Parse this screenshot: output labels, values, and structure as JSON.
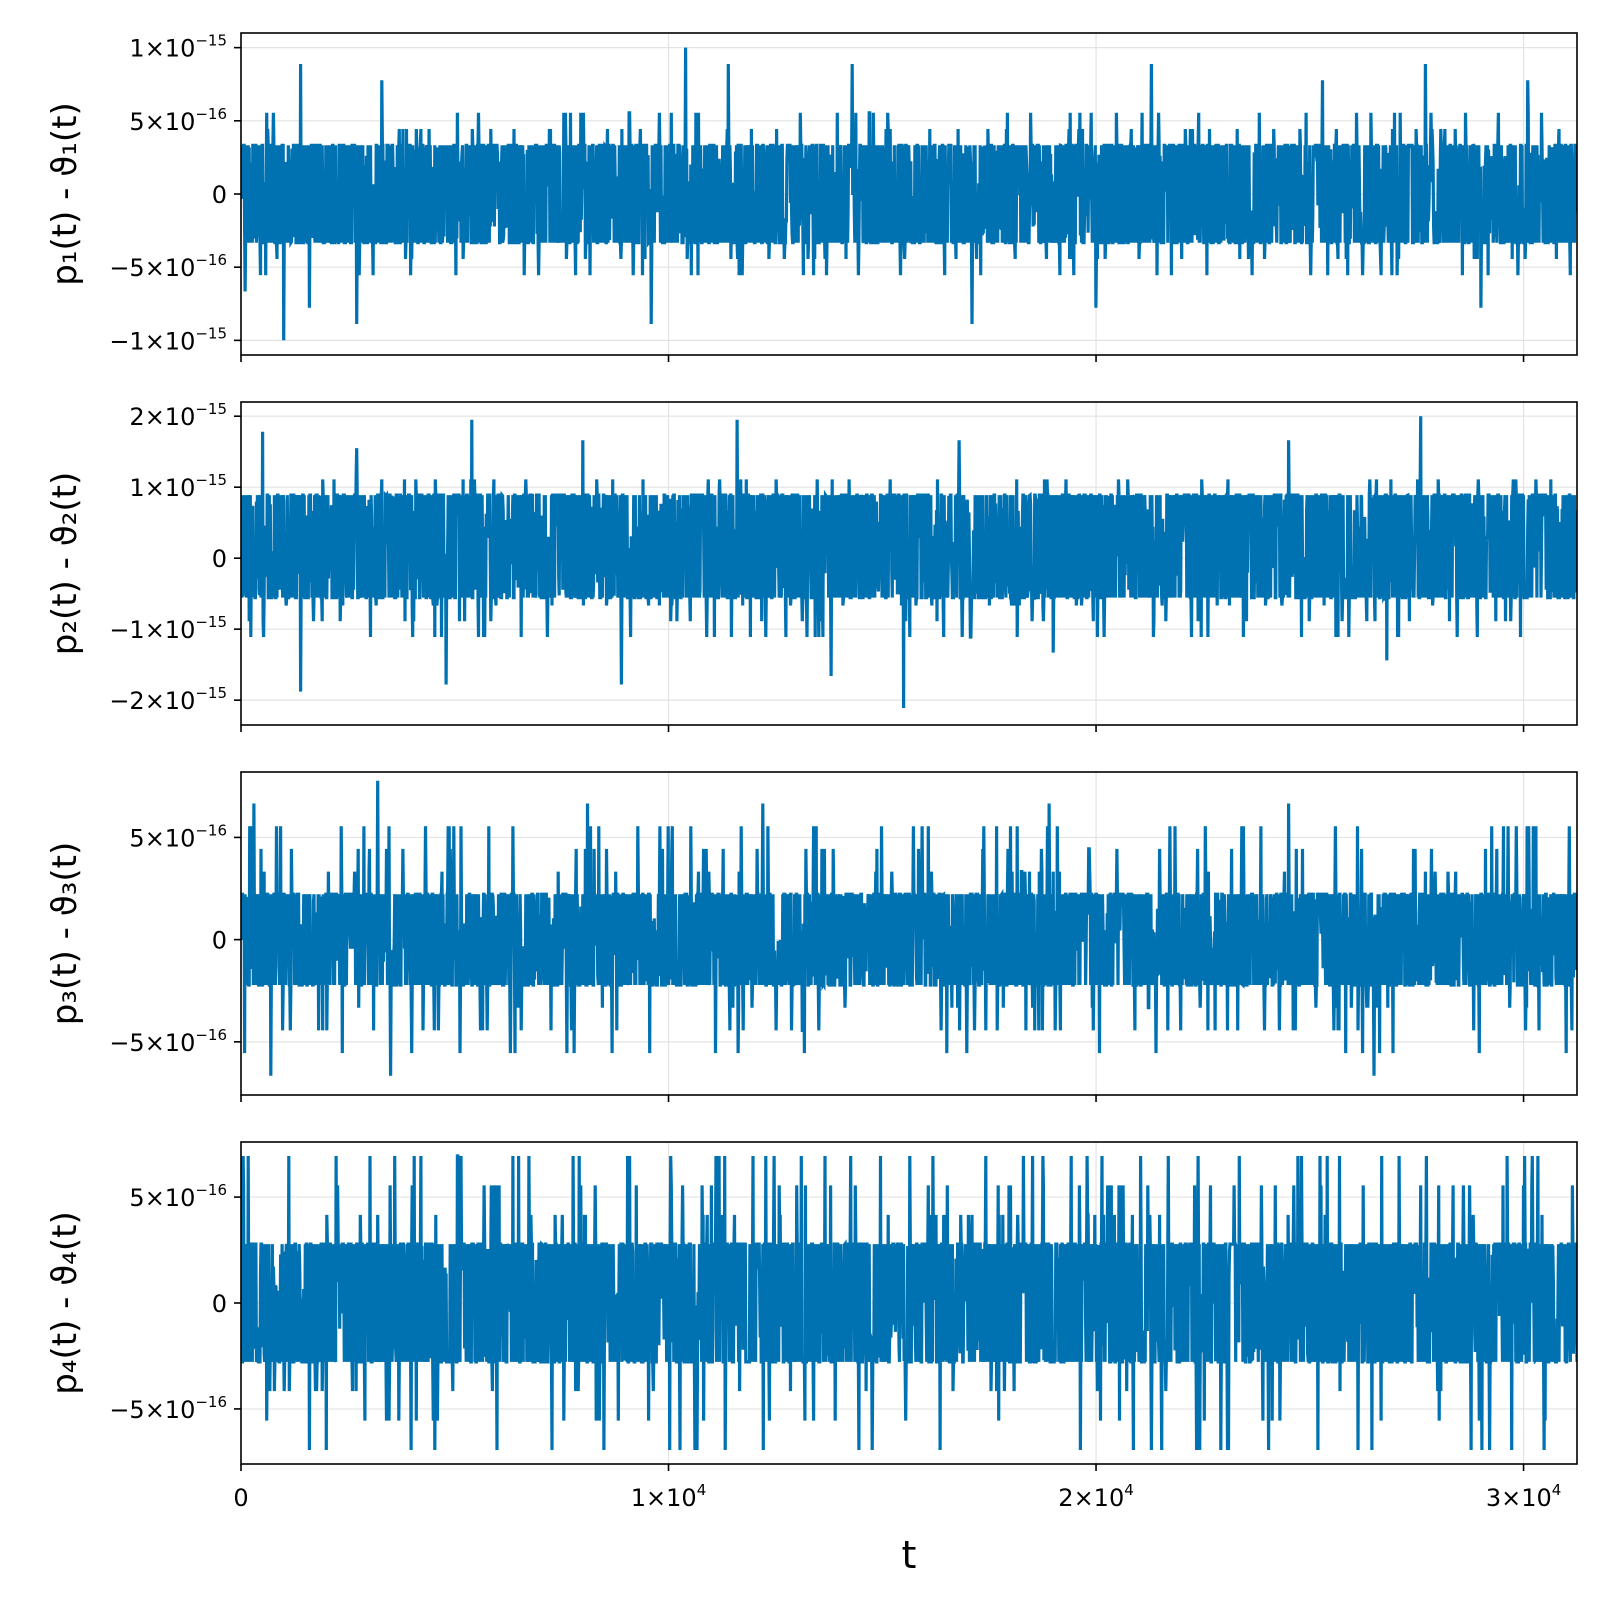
{
  "chart_data": {
    "type": "line",
    "xlabel": "t",
    "xlim": [
      0,
      31250
    ],
    "x_ticks": [
      {
        "value": 0,
        "label": "0"
      },
      {
        "value": 10000,
        "base": "1×10",
        "exp": "4"
      },
      {
        "value": 20000,
        "base": "2×10",
        "exp": "4"
      },
      {
        "value": 30000,
        "base": "3×10",
        "exp": "4"
      }
    ],
    "series_color": "#0072B2",
    "grid": true,
    "panels": [
      {
        "ylabel": "p₁(t) - ϑ₁(t)",
        "ylim": [
          -1.1e-15,
          1.1e-15
        ],
        "y_ticks": [
          {
            "value": 1e-15,
            "base": "1×10",
            "exp": "−15"
          },
          {
            "value": 5e-16,
            "base": "5×10",
            "exp": "−16"
          },
          {
            "value": 0,
            "label": "0"
          },
          {
            "value": -5e-16,
            "base": "−5×10",
            "exp": "−16"
          },
          {
            "value": -1e-15,
            "base": "−1×10",
            "exp": "−15"
          }
        ],
        "levels": [
          1.11e-16,
          2.22e-16,
          3.33e-16,
          4.44e-16,
          5.55e-16,
          6.66e-16,
          7.77e-16,
          8.88e-16,
          1e-15
        ],
        "band": [
          -3.33e-16,
          3.33e-16
        ],
        "peaks": [
          [
            600,
            5.55e-16
          ],
          [
            1400,
            8.88e-16
          ],
          [
            3300,
            7.77e-16
          ],
          [
            10400,
            1e-15
          ],
          [
            11400,
            8.88e-16
          ],
          [
            14300,
            8.88e-16
          ],
          [
            21300,
            8.88e-16
          ],
          [
            25300,
            7.77e-16
          ],
          [
            27700,
            8.88e-16
          ],
          [
            30100,
            7.77e-16
          ]
        ],
        "troughs": [
          [
            100,
            -6.66e-16
          ],
          [
            1000,
            -9.99e-16
          ],
          [
            1600,
            -7.77e-16
          ],
          [
            2700,
            -8.88e-16
          ],
          [
            9600,
            -8.88e-16
          ],
          [
            17100,
            -8.88e-16
          ],
          [
            20000,
            -7.77e-16
          ],
          [
            29000,
            -7.77e-16
          ]
        ],
        "seed": 11
      },
      {
        "ylabel": "p₂(t) - ϑ₂(t)",
        "ylim": [
          -2.35e-15,
          2.2e-15
        ],
        "y_ticks": [
          {
            "value": 2e-15,
            "base": "2×10",
            "exp": "−15"
          },
          {
            "value": 1e-15,
            "base": "1×10",
            "exp": "−15"
          },
          {
            "value": 0,
            "label": "0"
          },
          {
            "value": -1e-15,
            "base": "−1×10",
            "exp": "−15"
          },
          {
            "value": -2e-15,
            "base": "−2×10",
            "exp": "−15"
          }
        ],
        "levels": [
          2.22e-16,
          4.44e-16,
          6.66e-16,
          8.88e-16,
          1.11e-15,
          1.33e-15,
          1.55e-15,
          1.78e-15,
          2e-15
        ],
        "band": [
          -5.55e-16,
          8.88e-16
        ],
        "peaks": [
          [
            500,
            1.78e-15
          ],
          [
            2700,
            1.55e-15
          ],
          [
            5400,
            1.95e-15
          ],
          [
            8000,
            1.66e-15
          ],
          [
            11600,
            1.95e-15
          ],
          [
            16800,
            1.66e-15
          ],
          [
            24500,
            1.66e-15
          ],
          [
            27600,
            2e-15
          ]
        ],
        "troughs": [
          [
            1400,
            -1.88e-15
          ],
          [
            4800,
            -1.78e-15
          ],
          [
            8900,
            -1.78e-15
          ],
          [
            13800,
            -1.66e-15
          ],
          [
            15500,
            -2.11e-15
          ],
          [
            19000,
            -1.33e-15
          ],
          [
            26800,
            -1.44e-15
          ]
        ],
        "seed": 23
      },
      {
        "ylabel": "p₃(t) - ϑ₃(t)",
        "ylim": [
          -7.6e-16,
          8.2e-16
        ],
        "y_ticks": [
          {
            "value": 5e-16,
            "base": "5×10",
            "exp": "−16"
          },
          {
            "value": 0,
            "label": "0"
          },
          {
            "value": -5e-16,
            "base": "−5×10",
            "exp": "−16"
          }
        ],
        "levels": [
          1.11e-16,
          2.22e-16,
          3.33e-16,
          4.44e-16,
          5.55e-16,
          6.66e-16,
          7.77e-16
        ],
        "band": [
          -2.22e-16,
          2.22e-16
        ],
        "peaks": [
          [
            300,
            6.66e-16
          ],
          [
            3200,
            7.77e-16
          ],
          [
            8100,
            6.66e-16
          ],
          [
            12200,
            6.66e-16
          ],
          [
            18900,
            6.66e-16
          ],
          [
            24500,
            6.66e-16
          ]
        ],
        "troughs": [
          [
            700,
            -6.66e-16
          ],
          [
            3500,
            -6.66e-16
          ],
          [
            11100,
            -5.55e-16
          ],
          [
            26500,
            -6.66e-16
          ],
          [
            31000,
            -5.55e-16
          ]
        ],
        "seed": 37
      },
      {
        "ylabel": "p₄(t) - ϑ₄(t)",
        "ylim": [
          -7.6e-16,
          7.6e-16
        ],
        "y_ticks": [
          {
            "value": 5e-16,
            "base": "5×10",
            "exp": "−16"
          },
          {
            "value": 0,
            "label": "0"
          },
          {
            "value": -5e-16,
            "base": "−5×10",
            "exp": "−16"
          }
        ],
        "levels": [
          1.39e-16,
          2.78e-16,
          4.16e-16,
          5.55e-16,
          6.94e-16
        ],
        "band": [
          -2.78e-16,
          2.78e-16
        ],
        "peaks": [
          [
            600,
            5.55e-16
          ],
          [
            3600,
            6.94e-16
          ],
          [
            6000,
            5.55e-16
          ],
          [
            11000,
            5.55e-16
          ],
          [
            18000,
            5.55e-16
          ],
          [
            27600,
            5.55e-16
          ],
          [
            30000,
            5.55e-16
          ]
        ],
        "troughs": [
          [
            600,
            -5.55e-16
          ],
          [
            3400,
            -5.55e-16
          ],
          [
            13900,
            -5.55e-16
          ],
          [
            21300,
            -6.94e-16
          ],
          [
            30500,
            -5.55e-16
          ]
        ],
        "seed": 51
      }
    ]
  }
}
